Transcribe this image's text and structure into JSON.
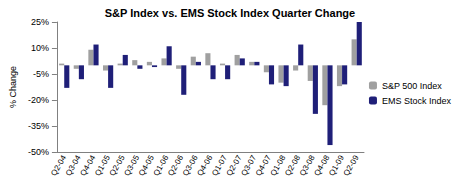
{
  "chart_data": {
    "type": "bar",
    "title": "S&P Index vs. EMS Stock Index Quarter Change",
    "y_label": "% Change",
    "categories": [
      "Q2-04",
      "Q3-04",
      "Q4-04",
      "Q1-05",
      "Q2-05",
      "Q3-05",
      "Q4-05",
      "Q1-06",
      "Q2-06",
      "Q3-06",
      "Q4-06",
      "Q1-07",
      "Q2-07",
      "Q3-07",
      "Q4-07",
      "Q1-08",
      "Q2-08",
      "Q3-08",
      "Q4-08",
      "Q1-09",
      "Q2-09"
    ],
    "series": [
      {
        "name": "S&P 500 Index",
        "color": "#a0a0a0",
        "values": [
          1,
          -2,
          9,
          -3,
          1,
          3,
          2,
          4,
          -2,
          5,
          7,
          1,
          6,
          2,
          -4,
          -10,
          -3,
          -9,
          -23,
          -12,
          15
        ]
      },
      {
        "name": "EMS Stock Index",
        "color": "#1f1f78",
        "values": [
          -13,
          -8,
          12,
          -13,
          6,
          -2,
          -1,
          11,
          -17,
          2,
          -8,
          -8,
          4,
          2,
          -11,
          -12,
          12,
          -28,
          -46,
          -11,
          25
        ]
      }
    ],
    "ylim": [
      -50,
      25
    ],
    "yticks": [
      {
        "value": -50,
        "label": "-50%"
      },
      {
        "value": -35,
        "label": "-35%"
      },
      {
        "value": -20,
        "label": "-20%"
      },
      {
        "value": -5,
        "label": "-5%"
      },
      {
        "value": 10,
        "label": "10%"
      },
      {
        "value": 25,
        "label": "25%"
      }
    ],
    "grid": false,
    "legend": "right"
  }
}
